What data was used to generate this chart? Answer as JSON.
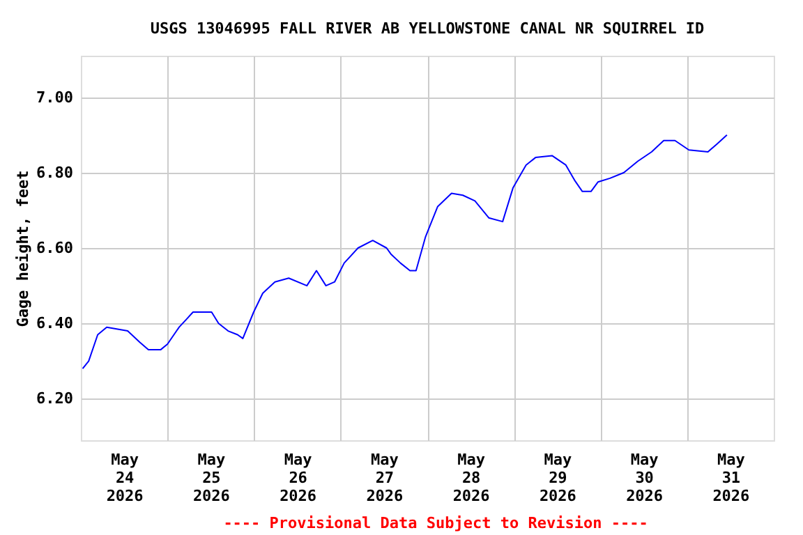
{
  "chart_data": {
    "type": "line",
    "title": "USGS 13046995 FALL RIVER AB YELLOWSTONE CANAL NR SQUIRREL ID",
    "ylabel": "Gage height, feet",
    "annotations": [
      "---- Provisional Data Subject to Revision ----"
    ],
    "x": [
      "2026-05-24T00:30",
      "2026-05-24T02:10",
      "2026-05-24T04:40",
      "2026-05-24T07:10",
      "2026-05-24T12:58",
      "2026-05-24T16:19",
      "2026-05-24T18:43",
      "2026-05-24T22:05",
      "2026-05-25T00:00",
      "2026-05-25T03:14",
      "2026-05-25T05:10",
      "2026-05-25T07:05",
      "2026-05-25T12:14",
      "2026-05-25T14:10",
      "2026-05-25T16:48",
      "2026-05-25T19:26",
      "2026-05-25T20:53",
      "2026-05-25T23:53",
      "2026-05-26T02:24",
      "2026-05-26T05:46",
      "2026-05-26T09:36",
      "2026-05-26T14:38",
      "2026-05-26T17:17",
      "2026-05-26T19:55",
      "2026-05-26T22:19",
      "2026-05-27T00:58",
      "2026-05-27T04:48",
      "2026-05-27T08:53",
      "2026-05-27T12:43",
      "2026-05-27T13:55",
      "2026-05-27T16:34",
      "2026-05-27T19:12",
      "2026-05-27T20:53",
      "2026-05-27T23:31",
      "2026-05-28T02:53",
      "2026-05-28T06:43",
      "2026-05-28T09:50",
      "2026-05-28T13:12",
      "2026-05-28T17:02",
      "2026-05-28T20:53",
      "2026-05-28T23:46",
      "2026-05-29T03:22",
      "2026-05-29T06:00",
      "2026-05-29T10:34",
      "2026-05-29T14:24",
      "2026-05-29T16:48",
      "2026-05-29T18:58",
      "2026-05-29T21:22",
      "2026-05-29T23:17",
      "2026-05-30T02:38",
      "2026-05-30T06:29",
      "2026-05-30T10:19",
      "2026-05-30T14:10",
      "2026-05-30T17:31",
      "2026-05-30T20:38",
      "2026-05-31T00:29",
      "2026-05-31T05:46",
      "2026-05-31T08:10",
      "2026-05-31T11:02"
    ],
    "series": [
      {
        "color": "#0000ff",
        "values": [
          6.28,
          6.3,
          6.37,
          6.39,
          6.38,
          6.35,
          6.33,
          6.33,
          6.345,
          6.39,
          6.41,
          6.43,
          6.43,
          6.4,
          6.38,
          6.37,
          6.36,
          6.43,
          6.48,
          6.51,
          6.52,
          6.5,
          6.54,
          6.5,
          6.51,
          6.56,
          6.6,
          6.62,
          6.6,
          6.584,
          6.56,
          6.54,
          6.54,
          6.63,
          6.71,
          6.745,
          6.74,
          6.725,
          6.68,
          6.67,
          6.76,
          6.82,
          6.84,
          6.845,
          6.82,
          6.78,
          6.75,
          6.75,
          6.775,
          6.785,
          6.8,
          6.83,
          6.855,
          6.885,
          6.885,
          6.86,
          6.855,
          6.875,
          6.9
        ]
      }
    ],
    "xlim": [
      "2026-05-24T00:00",
      "2026-06-01T00:00"
    ],
    "xticks": [
      {
        "value": "2026-05-24T12:00",
        "label": "May\n24\n2026"
      },
      {
        "value": "2026-05-25T00:00",
        "label": null
      },
      {
        "value": "2026-05-25T12:00",
        "label": "May\n25\n2026"
      },
      {
        "value": "2026-05-26T00:00",
        "label": null
      },
      {
        "value": "2026-05-26T12:00",
        "label": "May\n26\n2026"
      },
      {
        "value": "2026-05-27T00:00",
        "label": null
      },
      {
        "value": "2026-05-27T12:00",
        "label": "May\n27\n2026"
      },
      {
        "value": "2026-05-28T00:00",
        "label": null
      },
      {
        "value": "2026-05-28T12:00",
        "label": "May\n28\n2026"
      },
      {
        "value": "2026-05-29T00:00",
        "label": null
      },
      {
        "value": "2026-05-29T12:00",
        "label": "May\n29\n2026"
      },
      {
        "value": "2026-05-30T00:00",
        "label": null
      },
      {
        "value": "2026-05-30T12:00",
        "label": "May\n30\n2026"
      },
      {
        "value": "2026-05-31T00:00",
        "label": null
      },
      {
        "value": "2026-05-31T12:00",
        "label": "May\n31\n2026"
      }
    ],
    "ylim": [
      6.09,
      7.11
    ],
    "yticks": [
      {
        "value": 6.2,
        "label": "6.20"
      },
      {
        "value": 6.4,
        "label": "6.40"
      },
      {
        "value": 6.6,
        "label": "6.60"
      },
      {
        "value": 6.8,
        "label": "6.80"
      },
      {
        "value": 7.0,
        "label": "7.00"
      }
    ],
    "grid": true,
    "marker": "none",
    "line_style": "solid"
  }
}
